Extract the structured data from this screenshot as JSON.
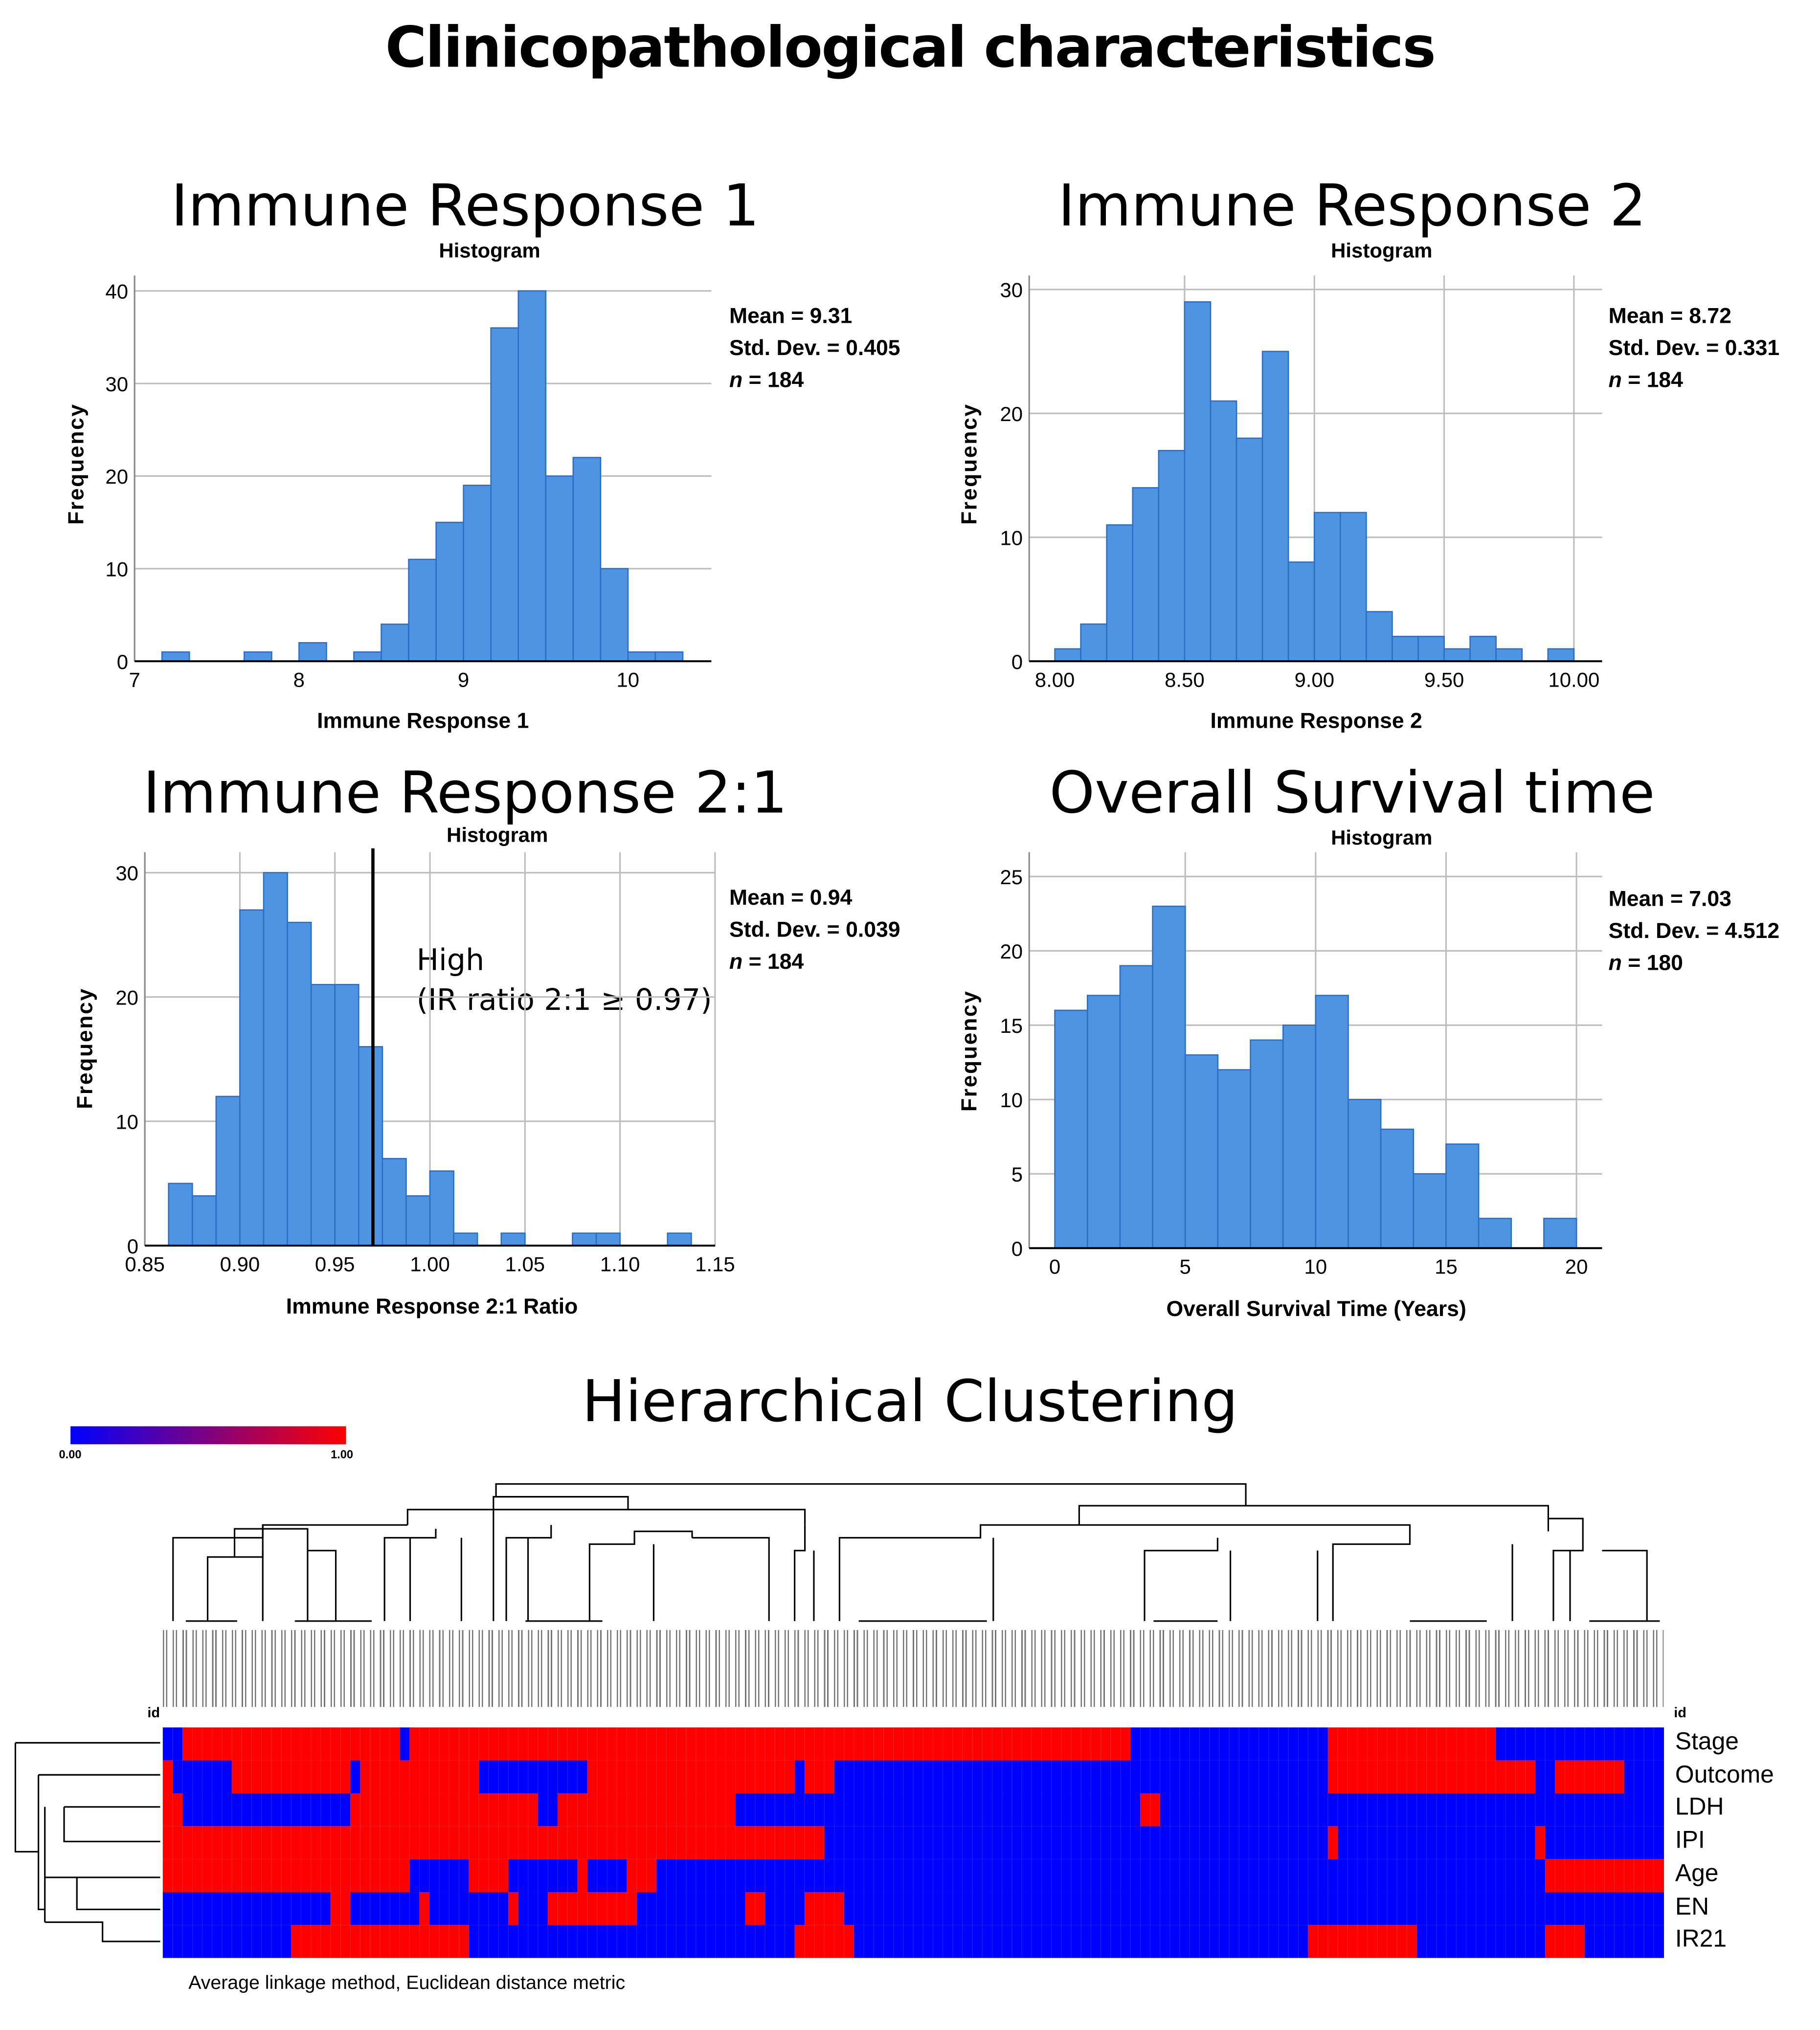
{
  "title": "Clinicopathological characteristics",
  "chart_data": [
    {
      "type": "bar",
      "panel_title": "Immune Response 1",
      "title": "Histogram",
      "xlabel": "Immune Response 1",
      "ylabel": "Frequency",
      "bin_start": 7.1667,
      "bin_width": 0.1667,
      "values": [
        1,
        0,
        0,
        1,
        0,
        2,
        0,
        1,
        4,
        11,
        15,
        19,
        36,
        40,
        20,
        22,
        10,
        1,
        1
      ],
      "xlim": [
        7,
        10.5
      ],
      "ylim": [
        0,
        42
      ],
      "xticks": [
        "7",
        "8",
        "9",
        "10"
      ],
      "xtick_values": [
        7,
        8,
        9,
        10
      ],
      "yticks": [
        0,
        10,
        20,
        30,
        40
      ],
      "vertical_grid": false,
      "stats": {
        "mean": "Mean = 9.31",
        "sd": "Std. Dev. = 0.405",
        "n_label": "n",
        "n": " = 184"
      }
    },
    {
      "type": "bar",
      "panel_title": "Immune Response 2",
      "title": "Histogram",
      "xlabel": "Immune Response 2",
      "ylabel": "Frequency",
      "bin_start": 8.0,
      "bin_width": 0.1,
      "values": [
        1,
        3,
        11,
        14,
        17,
        29,
        21,
        18,
        25,
        8,
        12,
        12,
        4,
        2,
        2,
        1,
        2,
        1,
        0,
        1
      ],
      "xlim": [
        7.9,
        10.1
      ],
      "ylim": [
        0,
        31
      ],
      "xticks": [
        "8.00",
        "8.50",
        "9.00",
        "9.50",
        "10.00"
      ],
      "xtick_values": [
        8,
        8.5,
        9,
        9.5,
        10
      ],
      "yticks": [
        0,
        10,
        20,
        30
      ],
      "vertical_grid": true,
      "stats": {
        "mean": "Mean = 8.72",
        "sd": "Std. Dev. = 0.331",
        "n_label": "n",
        "n": " = 184"
      }
    },
    {
      "type": "bar",
      "panel_title": "Immune Response 2:1",
      "title": "Histogram",
      "xlabel": "Immune Response 2:1 Ratio",
      "ylabel": "Frequency",
      "bin_start": 0.8625,
      "bin_width": 0.0125,
      "values": [
        5,
        4,
        12,
        27,
        30,
        26,
        21,
        21,
        16,
        7,
        4,
        6,
        1,
        0,
        1,
        0,
        0,
        1,
        1,
        0,
        0,
        1
      ],
      "xlim": [
        0.85,
        1.15
      ],
      "ylim": [
        0,
        31
      ],
      "xticks": [
        "0.85",
        "0.90",
        "0.95",
        "1.00",
        "1.05",
        "1.10",
        "1.15"
      ],
      "xtick_values": [
        0.85,
        0.9,
        0.95,
        1.0,
        1.05,
        1.1,
        1.15
      ],
      "yticks": [
        0,
        10,
        20,
        30
      ],
      "vertical_grid": true,
      "threshold": 0.97,
      "annotation": [
        "High",
        "(IR ratio 2:1 ≥ 0.97)"
      ],
      "stats": {
        "mean": "Mean = 0.94",
        "sd": "Std. Dev. = 0.039",
        "n_label": "n",
        "n": " = 184"
      }
    },
    {
      "type": "bar",
      "panel_title": "Overall Survival time",
      "title": "Histogram",
      "xlabel": "Overall Survival Time (Years)",
      "ylabel": "Frequency",
      "bin_start": 0,
      "bin_width": 1.25,
      "values": [
        16,
        17,
        19,
        23,
        13,
        12,
        14,
        15,
        17,
        10,
        8,
        5,
        7,
        2,
        0,
        2
      ],
      "xlim": [
        -1,
        21
      ],
      "ylim": [
        0,
        26
      ],
      "xticks": [
        "0",
        "5",
        "10",
        "15",
        "20"
      ],
      "xtick_values": [
        0,
        5,
        10,
        15,
        20
      ],
      "yticks": [
        0,
        5,
        10,
        15,
        20,
        25
      ],
      "vertical_grid": true,
      "stats": {
        "mean": "Mean = 7.03",
        "sd": "Std. Dev. = 4.512",
        "n_label": "n",
        "n": " = 180"
      }
    },
    {
      "type": "heatmap",
      "title": "Hierarchical Clustering",
      "colorbar": {
        "min": "0.00",
        "max": "1.00",
        "low_color": "#0000ff",
        "high_color": "#ff0000"
      },
      "id_label": "id",
      "n_columns": 152,
      "rows": [
        {
          "name": "Stage",
          "runs": [
            [
              0,
              2
            ],
            [
              1,
              22
            ],
            [
              0,
              1
            ],
            [
              1,
              73
            ],
            [
              0,
              20
            ],
            [
              1,
              17
            ],
            [
              0,
              17
            ]
          ]
        },
        {
          "name": "Outcome",
          "runs": [
            [
              1,
              1
            ],
            [
              0,
              6
            ],
            [
              1,
              12
            ],
            [
              0,
              1
            ],
            [
              1,
              12
            ],
            [
              0,
              11
            ],
            [
              1,
              21
            ],
            [
              0,
              1
            ],
            [
              1,
              3
            ],
            [
              0,
              50
            ],
            [
              1,
              21
            ],
            [
              0,
              2
            ],
            [
              1,
              7
            ],
            [
              0,
              4
            ]
          ]
        },
        {
          "name": "LDH",
          "runs": [
            [
              1,
              2
            ],
            [
              0,
              17
            ],
            [
              1,
              19
            ],
            [
              0,
              2
            ],
            [
              1,
              18
            ],
            [
              0,
              41
            ],
            [
              1,
              2
            ],
            [
              0,
              51
            ]
          ]
        },
        {
          "name": "IPI",
          "runs": [
            [
              1,
              67
            ],
            [
              0,
              51
            ],
            [
              1,
              1
            ],
            [
              0,
              20
            ],
            [
              1,
              1
            ],
            [
              0,
              12
            ]
          ]
        },
        {
          "name": "Age",
          "runs": [
            [
              1,
              25
            ],
            [
              0,
              6
            ],
            [
              1,
              4
            ],
            [
              0,
              7
            ],
            [
              1,
              1
            ],
            [
              0,
              4
            ],
            [
              1,
              3
            ],
            [
              0,
              90
            ],
            [
              1,
              12
            ]
          ]
        },
        {
          "name": "EN",
          "runs": [
            [
              0,
              17
            ],
            [
              1,
              2
            ],
            [
              0,
              7
            ],
            [
              1,
              1
            ],
            [
              0,
              8
            ],
            [
              1,
              1
            ],
            [
              0,
              3
            ],
            [
              1,
              9
            ],
            [
              0,
              11
            ],
            [
              1,
              2
            ],
            [
              0,
              4
            ],
            [
              1,
              4
            ],
            [
              0,
              83
            ]
          ]
        },
        {
          "name": "IR21",
          "runs": [
            [
              0,
              13
            ],
            [
              1,
              18
            ],
            [
              0,
              33
            ],
            [
              1,
              6
            ],
            [
              0,
              46
            ],
            [
              1,
              11
            ],
            [
              0,
              13
            ],
            [
              1,
              4
            ],
            [
              0,
              8
            ]
          ]
        }
      ],
      "footnote": "Average linkage method, Euclidean distance metric"
    }
  ],
  "colors": {
    "bar": "#4f93e3",
    "bar_edge": "#2a6fc4",
    "grid": "#bdbdbd",
    "low": "#0000ff",
    "high": "#ff0000"
  }
}
